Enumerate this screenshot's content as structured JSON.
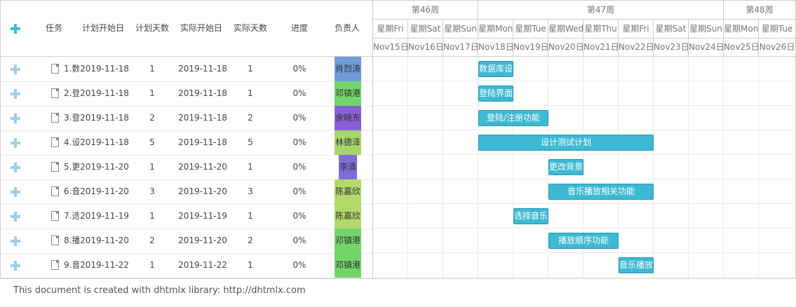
{
  "grid": {
    "headers": [
      "任务",
      "计划开始日",
      "计划天数",
      "实际开始日",
      "实际天数",
      "进度",
      "负责人"
    ],
    "rows": [
      {
        "task": "1.数",
        "plan_start": "2019-11-18",
        "plan_days": "1",
        "actual_start": "2019-11-18",
        "actual_days": "1",
        "progress": "0%",
        "owner": "肖烈涛",
        "owner_color": "#6f9bd6"
      },
      {
        "task": "2.登",
        "plan_start": "2019-11-18",
        "plan_days": "1",
        "actual_start": "2019-11-18",
        "actual_days": "1",
        "progress": "0%",
        "owner": "邓镇港",
        "owner_color": "#73d46b"
      },
      {
        "task": "3.登",
        "plan_start": "2019-11-18",
        "plan_days": "2",
        "actual_start": "2019-11-18",
        "actual_days": "2",
        "progress": "0%",
        "owner": "余晓东",
        "owner_color": "#8a5fd4"
      },
      {
        "task": "4.设",
        "plan_start": "2019-11-18",
        "plan_days": "5",
        "actual_start": "2019-11-18",
        "actual_days": "5",
        "progress": "0%",
        "owner": "林德泽",
        "owner_color": "#a6d66b"
      },
      {
        "task": "5.更",
        "plan_start": "2019-11-20",
        "plan_days": "1",
        "actual_start": "2019-11-20",
        "actual_days": "1",
        "progress": "0%",
        "owner": "李清",
        "owner_color": "#7d6ed8"
      },
      {
        "task": "6.音",
        "plan_start": "2019-11-20",
        "plan_days": "3",
        "actual_start": "2019-11-20",
        "actual_days": "3",
        "progress": "0%",
        "owner": "陈嘉欣",
        "owner_color": "#b4d96b"
      },
      {
        "task": "7.选",
        "plan_start": "2019-11-19",
        "plan_days": "1",
        "actual_start": "2019-11-19",
        "actual_days": "1",
        "progress": "0%",
        "owner": "陈嘉欣",
        "owner_color": "#b4d96b"
      },
      {
        "task": "8.播",
        "plan_start": "2019-11-20",
        "plan_days": "2",
        "actual_start": "2019-11-20",
        "actual_days": "2",
        "progress": "0%",
        "owner": "邓镇港",
        "owner_color": "#73d46b"
      },
      {
        "task": "9.音",
        "plan_start": "2019-11-22",
        "plan_days": "1",
        "actual_start": "2019-11-22",
        "actual_days": "1",
        "progress": "0%",
        "owner": "邓镇港",
        "owner_color": "#73d46b"
      }
    ]
  },
  "scale": {
    "weeks": [
      "第46周",
      "第47周",
      "第48周"
    ],
    "days": [
      "星期Fri",
      "星期Sat",
      "星期Sun",
      "星期Mon",
      "星期Tue",
      "星期Wed",
      "星期Thu",
      "星期Fri",
      "星期Sat",
      "星期Sun",
      "星期Mon",
      "星期Tue"
    ],
    "dates": [
      "Nov15日",
      "Nov16日",
      "Nov17日",
      "Nov18日",
      "Nov19日",
      "Nov20日",
      "Nov21日",
      "Nov22日",
      "Nov23日",
      "Nov24日",
      "Nov25日",
      "Nov26日"
    ]
  },
  "bars": [
    {
      "label": "数据库设",
      "start": "Nov18日",
      "days": 1
    },
    {
      "label": "登陆界面",
      "start": "Nov18日",
      "days": 1
    },
    {
      "label": "登陆/注册功能",
      "start": "Nov18日",
      "days": 2
    },
    {
      "label": "设计测试计划",
      "start": "Nov18日",
      "days": 5
    },
    {
      "label": "更改背景",
      "start": "Nov20日",
      "days": 1
    },
    {
      "label": "音乐播放相关功能",
      "start": "Nov20日",
      "days": 3
    },
    {
      "label": "选择音乐",
      "start": "Nov19日",
      "days": 1
    },
    {
      "label": "播放顺序功能",
      "start": "Nov20日",
      "days": 2
    },
    {
      "label": "音乐播放",
      "start": "Nov22日",
      "days": 1
    }
  ],
  "colors": {
    "bar": "#3db9d3",
    "add_icon": "#9ccfe6",
    "add_icon_header": "#3db9d3"
  },
  "footer": "This document is created with dhtmlx library: http://dhtmlx.com"
}
